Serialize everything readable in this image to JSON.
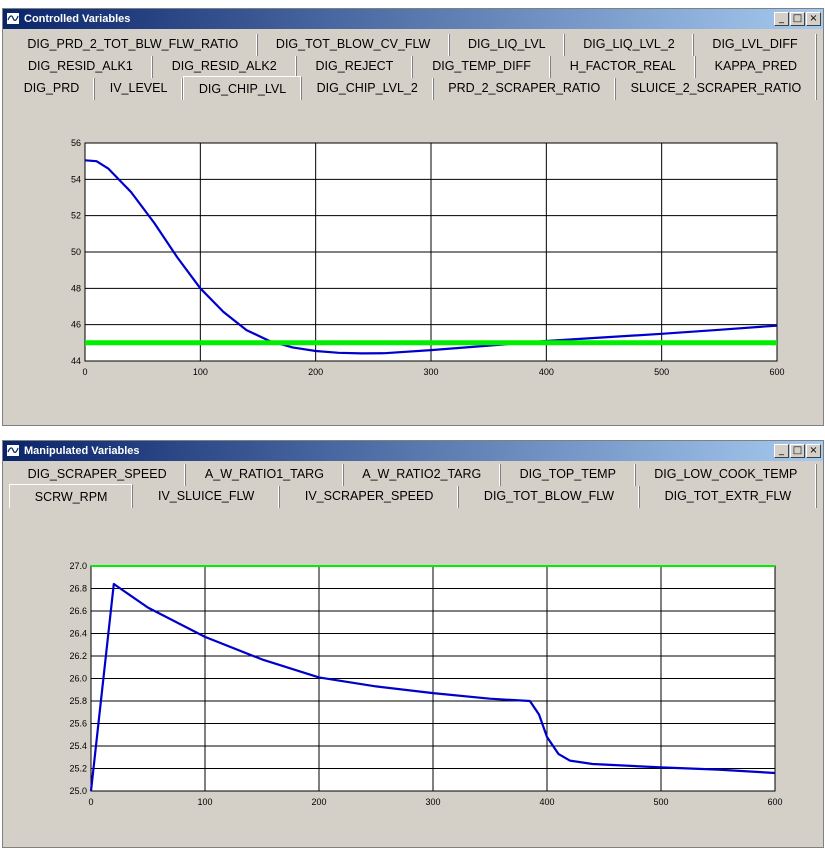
{
  "controlled": {
    "title": "Controlled Variables",
    "tab_rows": [
      [
        "DIG_PRD_2_TOT_BLW_FLW_RATIO",
        "DIG_TOT_BLOW_CV_FLW",
        "DIG_LIQ_LVL",
        "DIG_LIQ_LVL_2",
        "DIG_LVL_DIFF"
      ],
      [
        "DIG_RESID_ALK1",
        "DIG_RESID_ALK2",
        "DIG_REJECT",
        "DIG_TEMP_DIFF",
        "H_FACTOR_REAL",
        "KAPPA_PRED"
      ],
      [
        "DIG_PRD",
        "IV_LEVEL",
        "DIG_CHIP_LVL",
        "DIG_CHIP_LVL_2",
        "PRD_2_SCRAPER_RATIO",
        "SLUICE_2_SCRAPER_RATIO"
      ]
    ],
    "selected_tab": "DIG_CHIP_LVL"
  },
  "manipulated": {
    "title": "Manipulated Variables",
    "tab_rows": [
      [
        "DIG_SCRAPER_SPEED",
        "A_W_RATIO1_TARG",
        "A_W_RATIO2_TARG",
        "DIG_TOP_TEMP",
        "DIG_LOW_COOK_TEMP"
      ],
      [
        "SCRW_RPM",
        "IV_SLUICE_FLW",
        "IV_SCRAPER_SPEED",
        "DIG_TOT_BLOW_FLW",
        "DIG_TOT_EXTR_FLW"
      ]
    ],
    "selected_tab": "SCRW_RPM"
  },
  "window_buttons": {
    "minimize": "_",
    "maximize": "□",
    "close": "×"
  },
  "chart_data": [
    {
      "type": "line",
      "x_ticks": [
        0,
        100,
        200,
        300,
        400,
        500,
        600
      ],
      "y_ticks": [
        44,
        46,
        48,
        50,
        52,
        54,
        56
      ],
      "xlim": [
        0,
        600
      ],
      "ylim": [
        44,
        56
      ],
      "grid": true,
      "series": [
        {
          "color": "#0000cc",
          "x": [
            0,
            10,
            20,
            40,
            60,
            80,
            100,
            120,
            140,
            160,
            180,
            200,
            220,
            240,
            260,
            300,
            350,
            400,
            450,
            500,
            550,
            600
          ],
          "y": [
            55.05,
            55.0,
            54.6,
            53.3,
            51.6,
            49.7,
            48.0,
            46.7,
            45.7,
            45.1,
            44.75,
            44.55,
            44.45,
            44.42,
            44.43,
            44.6,
            44.85,
            45.1,
            45.3,
            45.5,
            45.72,
            45.95
          ]
        },
        {
          "color": "#00ee00",
          "x": [
            0,
            600
          ],
          "y": [
            45.0,
            45.0
          ]
        }
      ]
    },
    {
      "type": "line",
      "x_ticks": [
        0,
        100,
        200,
        300,
        400,
        500,
        600
      ],
      "y_ticks": [
        25.0,
        25.2,
        25.4,
        25.6,
        25.8,
        26.0,
        26.2,
        26.4,
        26.6,
        26.8,
        27.0
      ],
      "xlim": [
        0,
        600
      ],
      "ylim": [
        25.0,
        27.0
      ],
      "grid": true,
      "series": [
        {
          "color": "#0000cc",
          "x": [
            0,
            20,
            50,
            100,
            150,
            200,
            250,
            300,
            350,
            385,
            393,
            400,
            410,
            420,
            440,
            500,
            550,
            600
          ],
          "y": [
            25.0,
            26.84,
            26.63,
            26.37,
            26.17,
            26.01,
            25.93,
            25.87,
            25.82,
            25.8,
            25.68,
            25.48,
            25.33,
            25.27,
            25.24,
            25.21,
            25.19,
            25.16
          ]
        },
        {
          "color": "#00ee00",
          "x": [
            0,
            600
          ],
          "y": [
            27.0,
            27.0
          ]
        }
      ]
    }
  ]
}
